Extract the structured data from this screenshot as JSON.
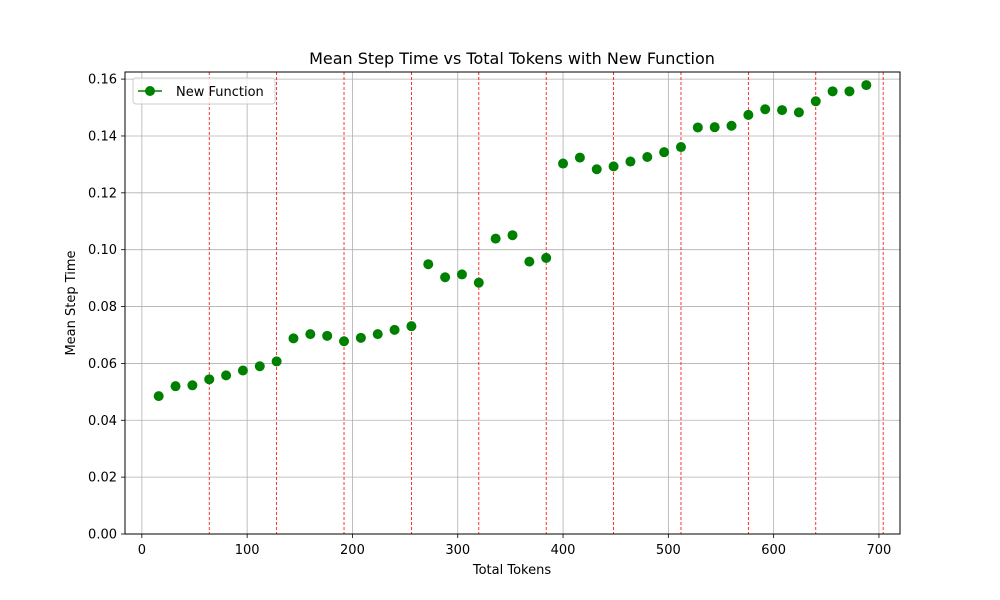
{
  "chart_data": {
    "type": "scatter",
    "title": "Mean Step Time vs Total Tokens with New Function",
    "xlabel": "Total Tokens",
    "ylabel": "Mean Step Time",
    "xlim": [
      -16,
      720
    ],
    "ylim": [
      0.0,
      0.1625
    ],
    "xticks": [
      0,
      100,
      200,
      300,
      400,
      500,
      600,
      700
    ],
    "yticks": [
      0.0,
      0.02,
      0.04,
      0.06,
      0.08,
      0.1,
      0.12,
      0.14,
      0.16
    ],
    "xtick_labels": [
      "0",
      "100",
      "200",
      "300",
      "400",
      "500",
      "600",
      "700"
    ],
    "ytick_labels": [
      "0.00",
      "0.02",
      "0.04",
      "0.06",
      "0.08",
      "0.10",
      "0.12",
      "0.14",
      "0.16"
    ],
    "grid": true,
    "legend_position": "top-left",
    "vlines": [
      64,
      128,
      192,
      256,
      320,
      384,
      448,
      512,
      576,
      640,
      704
    ],
    "vline_color": "#ff0000",
    "series": [
      {
        "name": "New Function",
        "color": "#008000",
        "x": [
          16,
          32,
          48,
          64,
          80,
          96,
          112,
          128,
          144,
          160,
          176,
          192,
          208,
          224,
          240,
          256,
          272,
          288,
          304,
          320,
          336,
          352,
          368,
          384,
          400,
          416,
          432,
          448,
          464,
          480,
          496,
          512,
          528,
          544,
          560,
          576,
          592,
          608,
          624,
          640,
          656,
          672,
          688
        ],
        "y": [
          0.0485,
          0.052,
          0.0523,
          0.0544,
          0.0558,
          0.0575,
          0.059,
          0.0607,
          0.0688,
          0.0703,
          0.0697,
          0.0678,
          0.069,
          0.0703,
          0.0718,
          0.0731,
          0.0949,
          0.0903,
          0.0913,
          0.0884,
          0.1039,
          0.1051,
          0.0958,
          0.0971,
          0.1303,
          0.1324,
          0.1283,
          0.1293,
          0.131,
          0.1326,
          0.1343,
          0.1361,
          0.143,
          0.1431,
          0.1436,
          0.1474,
          0.1494,
          0.1491,
          0.1483,
          0.1522,
          0.1557,
          0.1557,
          0.1579
        ]
      }
    ]
  }
}
